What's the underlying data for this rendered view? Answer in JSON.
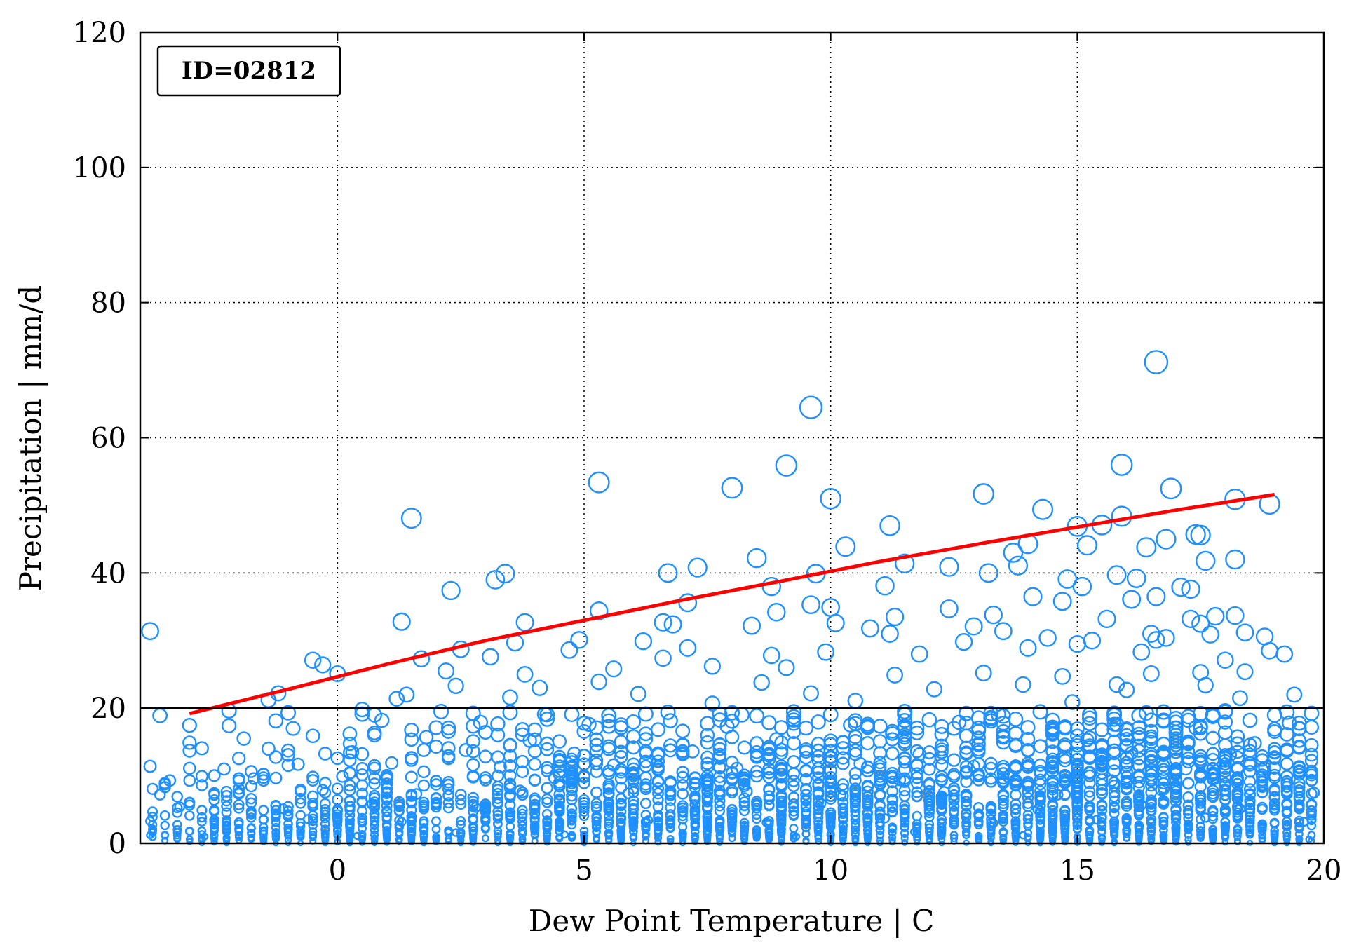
{
  "chart_data": {
    "type": "scatter",
    "title": "",
    "annotation": "ID=02812",
    "xlabel": "Dew Point Temperature | C",
    "ylabel": "Precipitation | mm/d",
    "xlim": [
      -4,
      20
    ],
    "ylim": [
      0,
      120
    ],
    "xticks": [
      0,
      5,
      10,
      15,
      20
    ],
    "yticks": [
      0,
      20,
      40,
      60,
      80,
      100,
      120
    ],
    "grid": true,
    "threshold_line": {
      "y": 20,
      "color": "#000000"
    },
    "marker": {
      "shape": "open-circle",
      "color": "#1e90ff",
      "size_scales_with": "y"
    },
    "fit_line": {
      "color": "#ff0000",
      "points": [
        {
          "x": -3.0,
          "y": 19.2
        },
        {
          "x": -1.0,
          "y": 22.8
        },
        {
          "x": 1.0,
          "y": 26.5
        },
        {
          "x": 3.0,
          "y": 30.0
        },
        {
          "x": 5.0,
          "y": 33.0
        },
        {
          "x": 7.0,
          "y": 36.0
        },
        {
          "x": 9.0,
          "y": 38.8
        },
        {
          "x": 11.0,
          "y": 41.7
        },
        {
          "x": 13.0,
          "y": 44.3
        },
        {
          "x": 15.0,
          "y": 46.8
        },
        {
          "x": 17.0,
          "y": 49.3
        },
        {
          "x": 19.0,
          "y": 51.6
        }
      ]
    },
    "points": [
      {
        "x": 16.6,
        "y": 71.2
      },
      {
        "x": 9.6,
        "y": 64.5
      },
      {
        "x": 9.1,
        "y": 55.9
      },
      {
        "x": 5.3,
        "y": 53.4
      },
      {
        "x": 8.0,
        "y": 52.6
      },
      {
        "x": 10.0,
        "y": 51.0
      },
      {
        "x": 13.1,
        "y": 51.7
      },
      {
        "x": 15.9,
        "y": 56.0
      },
      {
        "x": 16.9,
        "y": 52.5
      },
      {
        "x": 18.2,
        "y": 50.9
      },
      {
        "x": 18.9,
        "y": 50.2
      },
      {
        "x": 14.3,
        "y": 49.4
      },
      {
        "x": 15.9,
        "y": 48.4
      },
      {
        "x": 1.5,
        "y": 48.1
      },
      {
        "x": 11.2,
        "y": 47.0
      },
      {
        "x": 15.0,
        "y": 46.9
      },
      {
        "x": 15.5,
        "y": 47.1
      },
      {
        "x": 17.5,
        "y": 45.6
      },
      {
        "x": 17.4,
        "y": 45.7
      },
      {
        "x": 16.8,
        "y": 45.0
      },
      {
        "x": 14.0,
        "y": 44.3
      },
      {
        "x": 15.2,
        "y": 44.1
      },
      {
        "x": 10.3,
        "y": 43.9
      },
      {
        "x": 16.4,
        "y": 43.8
      },
      {
        "x": 13.7,
        "y": 43.0
      },
      {
        "x": 8.5,
        "y": 42.2
      },
      {
        "x": 18.2,
        "y": 42.0
      },
      {
        "x": 17.6,
        "y": 41.8
      },
      {
        "x": 11.5,
        "y": 41.4
      },
      {
        "x": 13.8,
        "y": 41.1
      },
      {
        "x": 12.4,
        "y": 40.9
      },
      {
        "x": 7.3,
        "y": 40.8
      },
      {
        "x": 6.7,
        "y": 40.0
      },
      {
        "x": 9.7,
        "y": 39.9
      },
      {
        "x": 3.4,
        "y": 39.9
      },
      {
        "x": 3.2,
        "y": 39.0
      },
      {
        "x": 13.2,
        "y": 40.0
      },
      {
        "x": 14.8,
        "y": 39.1
      },
      {
        "x": 15.1,
        "y": 38.0
      },
      {
        "x": 16.2,
        "y": 39.2
      },
      {
        "x": 15.8,
        "y": 39.7
      },
      {
        "x": 14.1,
        "y": 36.5
      },
      {
        "x": 11.1,
        "y": 38.1
      },
      {
        "x": 8.8,
        "y": 38.0
      },
      {
        "x": 2.3,
        "y": 37.4
      },
      {
        "x": 16.1,
        "y": 36.1
      },
      {
        "x": 16.6,
        "y": 36.5
      },
      {
        "x": 17.1,
        "y": 37.9
      },
      {
        "x": 17.3,
        "y": 37.6
      },
      {
        "x": 14.7,
        "y": 35.8
      },
      {
        "x": 9.6,
        "y": 35.3
      },
      {
        "x": 10.0,
        "y": 34.9
      },
      {
        "x": 7.1,
        "y": 35.6
      },
      {
        "x": 12.4,
        "y": 34.7
      },
      {
        "x": 13.3,
        "y": 33.8
      },
      {
        "x": 8.9,
        "y": 34.2
      },
      {
        "x": 5.3,
        "y": 34.4
      },
      {
        "x": 11.3,
        "y": 33.5
      },
      {
        "x": 15.6,
        "y": 33.2
      },
      {
        "x": 16.5,
        "y": 31.0
      },
      {
        "x": 17.8,
        "y": 33.6
      },
      {
        "x": 18.2,
        "y": 33.7
      },
      {
        "x": 17.3,
        "y": 33.2
      },
      {
        "x": 17.5,
        "y": 32.5
      },
      {
        "x": 12.9,
        "y": 32.1
      },
      {
        "x": 10.1,
        "y": 32.6
      },
      {
        "x": 8.4,
        "y": 32.2
      },
      {
        "x": 6.6,
        "y": 32.7
      },
      {
        "x": 6.8,
        "y": 32.4
      },
      {
        "x": 3.8,
        "y": 32.7
      },
      {
        "x": 1.3,
        "y": 32.8
      },
      {
        "x": -3.8,
        "y": 31.4
      },
      {
        "x": 10.8,
        "y": 31.8
      },
      {
        "x": 11.2,
        "y": 31.0
      },
      {
        "x": 13.5,
        "y": 31.4
      },
      {
        "x": 14.4,
        "y": 30.4
      },
      {
        "x": 15.0,
        "y": 29.5
      },
      {
        "x": 15.3,
        "y": 30.0
      },
      {
        "x": 16.6,
        "y": 30.1
      },
      {
        "x": 16.8,
        "y": 30.4
      },
      {
        "x": 18.4,
        "y": 31.2
      },
      {
        "x": 18.8,
        "y": 30.6
      },
      {
        "x": 17.7,
        "y": 30.9
      },
      {
        "x": 4.9,
        "y": 30.1
      },
      {
        "x": 3.6,
        "y": 29.7
      },
      {
        "x": 6.2,
        "y": 29.9
      },
      {
        "x": 12.7,
        "y": 29.8
      },
      {
        "x": 14.0,
        "y": 28.9
      },
      {
        "x": 9.9,
        "y": 28.3
      },
      {
        "x": 7.1,
        "y": 28.9
      },
      {
        "x": 4.7,
        "y": 28.6
      },
      {
        "x": 2.5,
        "y": 28.7
      },
      {
        "x": 18.9,
        "y": 28.5
      },
      {
        "x": 19.2,
        "y": 28.0
      },
      {
        "x": 16.3,
        "y": 28.3
      },
      {
        "x": 11.8,
        "y": 28.0
      },
      {
        "x": 8.8,
        "y": 27.8
      },
      {
        "x": 6.6,
        "y": 27.4
      },
      {
        "x": 3.1,
        "y": 27.6
      },
      {
        "x": 1.7,
        "y": 27.3
      },
      {
        "x": -0.5,
        "y": 27.1
      },
      {
        "x": -0.3,
        "y": 26.4
      },
      {
        "x": 9.1,
        "y": 26.0
      },
      {
        "x": 7.6,
        "y": 26.2
      },
      {
        "x": 5.6,
        "y": 25.8
      },
      {
        "x": 13.1,
        "y": 25.2
      },
      {
        "x": 16.5,
        "y": 25.1
      },
      {
        "x": 17.5,
        "y": 25.3
      },
      {
        "x": 18.0,
        "y": 27.1
      },
      {
        "x": 18.4,
        "y": 25.4
      },
      {
        "x": 2.2,
        "y": 25.5
      },
      {
        "x": 3.8,
        "y": 25.0
      },
      {
        "x": -0.0,
        "y": 25.1
      },
      {
        "x": 11.3,
        "y": 24.9
      },
      {
        "x": 14.7,
        "y": 24.7
      },
      {
        "x": 8.6,
        "y": 23.8
      },
      {
        "x": 5.3,
        "y": 23.9
      },
      {
        "x": 2.4,
        "y": 23.3
      },
      {
        "x": 4.1,
        "y": 23.0
      },
      {
        "x": 13.9,
        "y": 23.5
      },
      {
        "x": 15.8,
        "y": 23.5
      },
      {
        "x": 17.6,
        "y": 23.4
      },
      {
        "x": 19.4,
        "y": 22.0
      },
      {
        "x": -1.2,
        "y": 22.2
      },
      {
        "x": 1.4,
        "y": 22.0
      },
      {
        "x": 6.1,
        "y": 22.1
      },
      {
        "x": 9.6,
        "y": 22.2
      },
      {
        "x": 12.1,
        "y": 22.8
      },
      {
        "x": 16.0,
        "y": 22.7
      },
      {
        "x": 18.3,
        "y": 21.5
      },
      {
        "x": -1.4,
        "y": 21.2
      },
      {
        "x": 1.2,
        "y": 21.4
      },
      {
        "x": 3.5,
        "y": 21.6
      },
      {
        "x": 7.6,
        "y": 20.7
      },
      {
        "x": 10.5,
        "y": 21.1
      },
      {
        "x": 14.9,
        "y": 20.9
      },
      {
        "x": -2.2,
        "y": 19.6
      },
      {
        "x": -3.6,
        "y": 18.9
      },
      {
        "x": 0.5,
        "y": 19.8
      },
      {
        "x": 2.1,
        "y": 19.5
      },
      {
        "x": 4.2,
        "y": 19.1
      },
      {
        "x": 6.7,
        "y": 19.4
      },
      {
        "x": 8.2,
        "y": 19.0
      },
      {
        "x": 11.5,
        "y": 19.5
      },
      {
        "x": 13.4,
        "y": 19.1
      },
      {
        "x": 16.4,
        "y": 19.3
      },
      {
        "x": 18.0,
        "y": 19.6
      },
      {
        "x": 19.3,
        "y": 17.8
      },
      {
        "x": -2.2,
        "y": 17.4
      },
      {
        "x": -0.9,
        "y": 17.0
      },
      {
        "x": 0.9,
        "y": 18.2
      },
      {
        "x": 2.9,
        "y": 17.9
      },
      {
        "x": 5.1,
        "y": 17.6
      },
      {
        "x": 7.9,
        "y": 17.3
      },
      {
        "x": 10.4,
        "y": 17.5
      },
      {
        "x": 12.6,
        "y": 17.9
      },
      {
        "x": 14.5,
        "y": 17.2
      },
      {
        "x": 15.8,
        "y": 17.6
      },
      {
        "x": 17.4,
        "y": 17.1
      },
      {
        "x": -1.9,
        "y": 15.5
      },
      {
        "x": -0.5,
        "y": 15.9
      },
      {
        "x": 1.8,
        "y": 15.7
      },
      {
        "x": 3.9,
        "y": 15.2
      },
      {
        "x": 6.0,
        "y": 15.8
      },
      {
        "x": 8.9,
        "y": 15.4
      },
      {
        "x": 11.0,
        "y": 15.1
      },
      {
        "x": 13.0,
        "y": 15.6
      },
      {
        "x": 15.2,
        "y": 15.3
      },
      {
        "x": 17.0,
        "y": 15.5
      },
      {
        "x": 18.6,
        "y": 14.8
      },
      {
        "x": -3.0,
        "y": 13.7
      },
      {
        "x": -1.4,
        "y": 14.0
      },
      {
        "x": 0.3,
        "y": 13.5
      },
      {
        "x": 2.6,
        "y": 13.8
      },
      {
        "x": 4.8,
        "y": 13.3
      },
      {
        "x": 7.2,
        "y": 13.6
      },
      {
        "x": 9.5,
        "y": 13.9
      },
      {
        "x": 11.8,
        "y": 13.2
      },
      {
        "x": 14.0,
        "y": 13.7
      },
      {
        "x": 16.1,
        "y": 13.4
      },
      {
        "x": 18.1,
        "y": 13.1
      },
      {
        "x": 19.0,
        "y": 13.5
      },
      {
        "x": -3.8,
        "y": 11.4
      },
      {
        "x": -2.3,
        "y": 11.0
      },
      {
        "x": -0.8,
        "y": 11.7
      },
      {
        "x": 1.1,
        "y": 11.9
      },
      {
        "x": 3.3,
        "y": 11.3
      },
      {
        "x": 5.6,
        "y": 11.6
      },
      {
        "x": 8.1,
        "y": 11.1
      },
      {
        "x": 10.6,
        "y": 11.8
      },
      {
        "x": 12.9,
        "y": 11.4
      },
      {
        "x": 15.0,
        "y": 11.7
      },
      {
        "x": 17.2,
        "y": 11.0
      },
      {
        "x": 18.8,
        "y": 11.2
      },
      {
        "x": -3.4,
        "y": 9.3
      },
      {
        "x": -1.7,
        "y": 9.6
      },
      {
        "x": 0.1,
        "y": 9.9
      },
      {
        "x": 2.0,
        "y": 9.2
      },
      {
        "x": 4.4,
        "y": 9.7
      },
      {
        "x": 6.5,
        "y": 9.1
      },
      {
        "x": 9.0,
        "y": 9.8
      },
      {
        "x": 11.4,
        "y": 9.4
      },
      {
        "x": 13.6,
        "y": 9.9
      },
      {
        "x": 15.7,
        "y": 9.3
      },
      {
        "x": 17.8,
        "y": 9.6
      },
      {
        "x": 19.5,
        "y": 8.9
      },
      {
        "x": -3.6,
        "y": 7.2
      },
      {
        "x": -2.0,
        "y": 7.5
      },
      {
        "x": -0.3,
        "y": 7.9
      },
      {
        "x": 1.6,
        "y": 7.3
      },
      {
        "x": 3.7,
        "y": 7.8
      },
      {
        "x": 5.9,
        "y": 7.4
      },
      {
        "x": 8.3,
        "y": 7.7
      },
      {
        "x": 10.2,
        "y": 7.1
      },
      {
        "x": 12.3,
        "y": 7.6
      },
      {
        "x": 14.6,
        "y": 7.2
      },
      {
        "x": 16.7,
        "y": 7.9
      },
      {
        "x": 18.5,
        "y": 7.3
      },
      {
        "x": 19.8,
        "y": 7.5
      },
      {
        "x": -3.2,
        "y": 5.4
      },
      {
        "x": -1.1,
        "y": 5.1
      },
      {
        "x": 0.7,
        "y": 5.8
      },
      {
        "x": 2.8,
        "y": 5.3
      },
      {
        "x": 5.0,
        "y": 5.6
      },
      {
        "x": 7.5,
        "y": 5.2
      },
      {
        "x": 9.8,
        "y": 5.9
      },
      {
        "x": 12.0,
        "y": 5.5
      },
      {
        "x": 14.2,
        "y": 5.0
      },
      {
        "x": 16.3,
        "y": 5.7
      },
      {
        "x": 18.3,
        "y": 5.1
      },
      {
        "x": -3.8,
        "y": 3.3
      },
      {
        "x": -2.5,
        "y": 3.0
      },
      {
        "x": -0.6,
        "y": 3.6
      },
      {
        "x": 1.3,
        "y": 3.2
      },
      {
        "x": 3.5,
        "y": 3.9
      },
      {
        "x": 6.3,
        "y": 3.4
      },
      {
        "x": 8.7,
        "y": 3.1
      },
      {
        "x": 11.1,
        "y": 3.7
      },
      {
        "x": 13.3,
        "y": 3.0
      },
      {
        "x": 15.4,
        "y": 3.5
      },
      {
        "x": 17.6,
        "y": 3.8
      },
      {
        "x": 19.6,
        "y": 3.2
      },
      {
        "x": -3.8,
        "y": 1.2
      },
      {
        "x": -2.7,
        "y": 1.0
      },
      {
        "x": -1.5,
        "y": 1.4
      },
      {
        "x": 0.4,
        "y": 1.1
      },
      {
        "x": 2.4,
        "y": 1.6
      },
      {
        "x": 4.6,
        "y": 1.3
      },
      {
        "x": 7.0,
        "y": 1.5
      },
      {
        "x": 9.3,
        "y": 1.0
      },
      {
        "x": 11.7,
        "y": 1.7
      },
      {
        "x": 13.9,
        "y": 1.2
      },
      {
        "x": 16.0,
        "y": 1.8
      },
      {
        "x": 18.0,
        "y": 1.1
      },
      {
        "x": 19.7,
        "y": 0.6
      }
    ]
  }
}
